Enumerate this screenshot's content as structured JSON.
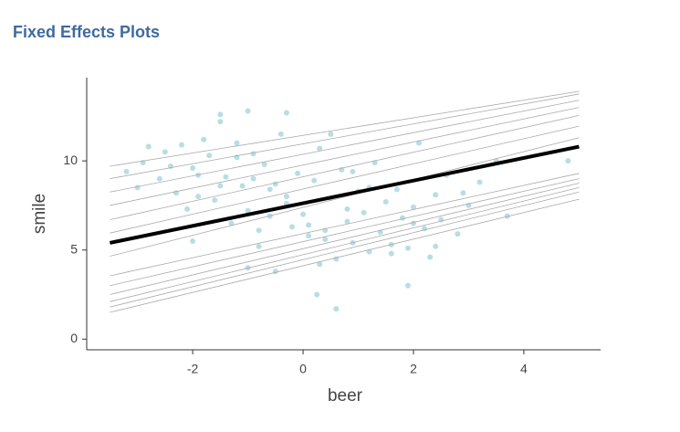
{
  "chart_data": {
    "type": "scatter",
    "title": "Fixed Effects Plots",
    "x_label": "beer",
    "y_label": "smile",
    "xlim": [
      -3.92,
      5.39
    ],
    "ylim": [
      -0.6,
      14.67
    ],
    "xticks": [
      -2,
      0,
      2,
      4
    ],
    "yticks": [
      0,
      5,
      10
    ],
    "grid": false,
    "points": {
      "color": "#9fd3d9",
      "x": [
        -3.2,
        -3.0,
        -2.8,
        -2.6,
        -2.5,
        -2.3,
        -2.2,
        -2.1,
        -2.0,
        -1.9,
        -1.8,
        -1.7,
        -1.6,
        -1.5,
        -1.4,
        -1.3,
        -1.2,
        -1.1,
        -1.0,
        -0.9,
        -0.8,
        -0.7,
        -0.6,
        -0.5,
        -0.4,
        -0.3,
        -0.2,
        -0.1,
        0.0,
        0.1,
        0.2,
        0.3,
        0.4,
        0.5,
        0.6,
        0.7,
        0.8,
        0.9,
        1.0,
        1.1,
        1.2,
        1.3,
        1.4,
        1.5,
        1.6,
        1.7,
        1.8,
        1.9,
        2.0,
        2.1,
        2.2,
        2.3,
        2.4,
        2.5,
        2.6,
        2.8,
        3.0,
        3.2,
        3.5,
        3.7,
        -2.9,
        -2.4,
        -1.9,
        -1.5,
        -1.2,
        -0.9,
        -0.6,
        -0.3,
        0.1,
        0.4,
        0.8,
        1.2,
        1.6,
        2.0,
        2.4,
        2.9,
        -1.0,
        -0.5,
        0.3,
        0.9,
        -1.5,
        -1.0,
        -0.3,
        0.25,
        0.6,
        1.9,
        4.8,
        -2.0,
        -0.8,
        0.5
      ],
      "y": [
        9.4,
        8.5,
        10.8,
        9.0,
        10.5,
        8.2,
        10.9,
        7.3,
        9.6,
        8.0,
        11.2,
        10.3,
        7.8,
        12.2,
        9.1,
        6.5,
        11.0,
        8.6,
        7.2,
        10.4,
        5.2,
        9.8,
        6.9,
        8.7,
        11.5,
        7.6,
        6.3,
        9.3,
        7.0,
        5.8,
        8.9,
        10.7,
        6.1,
        7.9,
        4.5,
        9.5,
        6.6,
        5.4,
        8.3,
        7.1,
        4.9,
        9.9,
        6.0,
        7.7,
        5.3,
        8.4,
        6.8,
        5.1,
        7.4,
        11.0,
        6.2,
        4.6,
        8.1,
        6.7,
        9.2,
        5.9,
        7.5,
        8.8,
        10.0,
        6.9,
        9.9,
        9.7,
        9.2,
        8.6,
        10.2,
        9.0,
        8.4,
        8.0,
        6.4,
        5.6,
        7.3,
        8.5,
        4.8,
        6.5,
        5.2,
        8.2,
        4.0,
        3.8,
        4.2,
        9.4,
        12.6,
        12.8,
        12.7,
        2.5,
        1.7,
        3.0,
        10.0,
        5.5,
        6.1,
        11.5
      ]
    },
    "group_lines": {
      "color": "#aaaaaa",
      "x": [
        -3.5,
        5
      ],
      "series": [
        {
          "values": [
            9.7,
            13.9
          ]
        },
        {
          "values": [
            9.0,
            13.75
          ]
        },
        {
          "values": [
            8.25,
            13.4
          ]
        },
        {
          "values": [
            7.5,
            13.0
          ]
        },
        {
          "values": [
            6.7,
            12.55
          ]
        },
        {
          "values": [
            5.95,
            11.95
          ]
        },
        {
          "values": [
            4.65,
            11.3
          ]
        },
        {
          "values": [
            3.55,
            9.3
          ]
        },
        {
          "values": [
            3.0,
            9.0
          ]
        },
        {
          "values": [
            2.5,
            8.75
          ]
        },
        {
          "values": [
            2.1,
            8.5
          ]
        },
        {
          "values": [
            1.8,
            8.25
          ]
        },
        {
          "values": [
            1.5,
            7.85
          ]
        }
      ]
    },
    "fixed_line": {
      "color": "#000000",
      "x": [
        -3.5,
        5
      ],
      "values": [
        5.4,
        10.8
      ]
    }
  }
}
